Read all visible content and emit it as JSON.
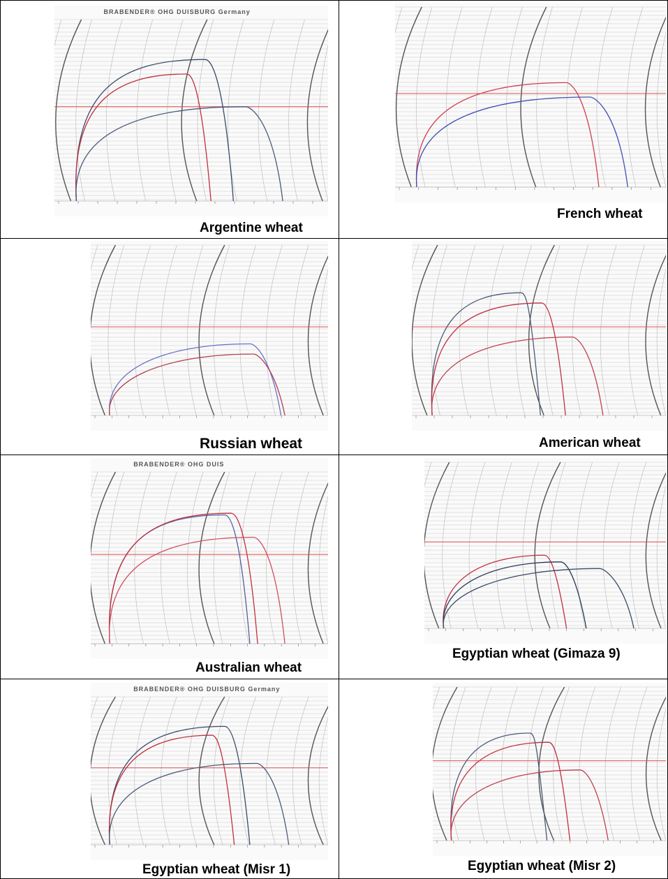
{
  "panels": [
    {
      "caption": "Argentine wheat",
      "stamp": "BRABENDER® OHG   DUISBURG   Germany",
      "curves": [
        {
          "color": "#3a4a6a",
          "maxPct": 0.78,
          "endPct": 0.7
        },
        {
          "color": "#c0303c",
          "maxPct": 0.7,
          "endPct": 0.6
        },
        {
          "color": "#4a5a7a",
          "maxPct": 0.52,
          "endPct": 0.92
        }
      ]
    },
    {
      "caption": "French wheat",
      "stamp": "",
      "curves": [
        {
          "color": "#d04050",
          "maxPct": 0.58,
          "endPct": 0.82
        },
        {
          "color": "#4050b0",
          "maxPct": 0.5,
          "endPct": 0.95
        }
      ]
    },
    {
      "caption": "Russian wheat",
      "stamp": "",
      "curves": [
        {
          "color": "#6a70c8",
          "maxPct": 0.42,
          "endPct": 0.88
        },
        {
          "color": "#b04050",
          "maxPct": 0.36,
          "endPct": 0.9
        }
      ]
    },
    {
      "caption": "American wheat",
      "stamp": "",
      "curves": [
        {
          "color": "#4a5a7a",
          "maxPct": 0.72,
          "endPct": 0.52
        },
        {
          "color": "#c03040",
          "maxPct": 0.66,
          "endPct": 0.64
        },
        {
          "color": "#c04050",
          "maxPct": 0.46,
          "endPct": 0.82
        }
      ]
    },
    {
      "caption": "Australian wheat",
      "stamp": "BRABENDER® OHG   DUIS",
      "curves": [
        {
          "color": "#5060a0",
          "maxPct": 0.75,
          "endPct": 0.72
        },
        {
          "color": "#c03040",
          "maxPct": 0.76,
          "endPct": 0.76
        },
        {
          "color": "#d05060",
          "maxPct": 0.62,
          "endPct": 0.9
        }
      ]
    },
    {
      "caption": "Egyptian wheat (Gimaza 9)",
      "stamp": "",
      "curves": [
        {
          "color": "#c03040",
          "maxPct": 0.44,
          "endPct": 0.62
        },
        {
          "color": "#2a3a5a",
          "maxPct": 0.4,
          "endPct": 0.72
        },
        {
          "color": "#3a4a6a",
          "maxPct": 0.36,
          "endPct": 0.96
        }
      ]
    },
    {
      "caption": "Egyptian wheat (Misr 1)",
      "stamp": "BRABENDER® OHG   DUISBURG   Germany",
      "curves": [
        {
          "color": "#3a4a6a",
          "maxPct": 0.8,
          "endPct": 0.72
        },
        {
          "color": "#c0303c",
          "maxPct": 0.74,
          "endPct": 0.64
        },
        {
          "color": "#4a5a7a",
          "maxPct": 0.55,
          "endPct": 0.92
        }
      ]
    },
    {
      "caption": "Egyptian wheat (Misr 2)",
      "stamp": "",
      "curves": [
        {
          "color": "#4a5a7a",
          "maxPct": 0.7,
          "endPct": 0.5
        },
        {
          "color": "#c03040",
          "maxPct": 0.64,
          "endPct": 0.62
        },
        {
          "color": "#c04050",
          "maxPct": 0.46,
          "endPct": 0.82
        }
      ]
    }
  ]
}
